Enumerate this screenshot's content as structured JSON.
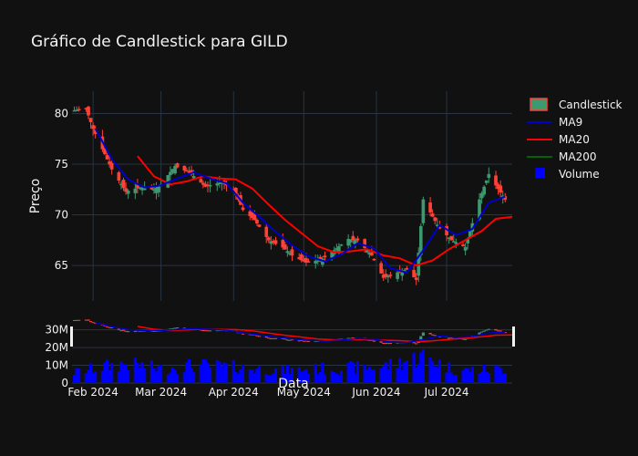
{
  "chart_data": {
    "type": "candlestick",
    "title": "Gráfico de Candlestick para GILD",
    "xlabel": "Data",
    "ylabel": "Preço",
    "colors": {
      "background": "#111111",
      "grid": "#283442",
      "increasing": "#3d9970",
      "decreasing": "#ff4136",
      "ma9": "#0000cd",
      "ma20": "#ff0000",
      "ma200": "#006400",
      "volume": "#0000ff"
    },
    "price_yticks": [
      "65",
      "70",
      "75",
      "80"
    ],
    "volume_yticks": [
      "0",
      "10M",
      "20M",
      "30M"
    ],
    "price_ylim": [
      61.5,
      82.2
    ],
    "volume_ylim": [
      0,
      37
    ],
    "legend": {
      "position": "top-right",
      "entries": [
        "Candlestick",
        "MA9",
        "MA20",
        "MA200",
        "Volume"
      ]
    },
    "x_ticks": [
      {
        "label": "Feb 2024",
        "date": "2024-02-01"
      },
      {
        "label": "Mar 2024",
        "date": "2024-03-01"
      },
      {
        "label": "Apr 2024",
        "date": "2024-04-01"
      },
      {
        "label": "May 2024",
        "date": "2024-05-01"
      },
      {
        "label": "Jun 2024",
        "date": "2024-06-01"
      },
      {
        "label": "Jul 2024",
        "date": "2024-07-01"
      }
    ],
    "x_range": [
      "2024-01-23",
      "2024-07-29"
    ],
    "price_checkpoints": [
      {
        "date": "2024-01-24",
        "close": 80.3
      },
      {
        "date": "2024-01-29",
        "close": 80.5
      },
      {
        "date": "2024-02-01",
        "close": 78.5
      },
      {
        "date": "2024-02-05",
        "close": 76.5
      },
      {
        "date": "2024-02-09",
        "close": 74.5
      },
      {
        "date": "2024-02-15",
        "close": 72.3
      },
      {
        "date": "2024-02-21",
        "close": 72.7
      },
      {
        "date": "2024-02-27",
        "close": 72.5
      },
      {
        "date": "2024-03-01",
        "close": 73.0
      },
      {
        "date": "2024-03-07",
        "close": 74.8
      },
      {
        "date": "2024-03-13",
        "close": 74.2
      },
      {
        "date": "2024-03-20",
        "close": 72.8
      },
      {
        "date": "2024-03-27",
        "close": 73.2
      },
      {
        "date": "2024-04-01",
        "close": 72.5
      },
      {
        "date": "2024-04-05",
        "close": 70.5
      },
      {
        "date": "2024-04-10",
        "close": 69.5
      },
      {
        "date": "2024-04-16",
        "close": 67.5
      },
      {
        "date": "2024-04-22",
        "close": 66.8
      },
      {
        "date": "2024-04-26",
        "close": 66.0
      },
      {
        "date": "2024-05-02",
        "close": 65.3
      },
      {
        "date": "2024-05-08",
        "close": 65.5
      },
      {
        "date": "2024-05-14",
        "close": 66.5
      },
      {
        "date": "2024-05-20",
        "close": 67.6
      },
      {
        "date": "2024-05-24",
        "close": 67.5
      },
      {
        "date": "2024-05-30",
        "close": 66.0
      },
      {
        "date": "2024-06-04",
        "close": 63.8
      },
      {
        "date": "2024-06-10",
        "close": 64.3
      },
      {
        "date": "2024-06-14",
        "close": 64.6
      },
      {
        "date": "2024-06-18",
        "close": 63.6
      },
      {
        "date": "2024-06-21",
        "close": 71.5
      },
      {
        "date": "2024-06-27",
        "close": 69.0
      },
      {
        "date": "2024-07-03",
        "close": 67.5
      },
      {
        "date": "2024-07-09",
        "close": 66.8
      },
      {
        "date": "2024-07-15",
        "close": 71.5
      },
      {
        "date": "2024-07-19",
        "close": 74.0
      },
      {
        "date": "2024-07-26",
        "close": 71.5
      }
    ],
    "ma9_checkpoints": [
      {
        "date": "2024-02-02",
        "value": 78.5
      },
      {
        "date": "2024-02-09",
        "value": 75.5
      },
      {
        "date": "2024-02-16",
        "value": 73.5
      },
      {
        "date": "2024-02-23",
        "value": 72.7
      },
      {
        "date": "2024-03-01",
        "value": 72.9
      },
      {
        "date": "2024-03-08",
        "value": 73.6
      },
      {
        "date": "2024-03-15",
        "value": 74.2
      },
      {
        "date": "2024-03-22",
        "value": 73.6
      },
      {
        "date": "2024-03-29",
        "value": 73.1
      },
      {
        "date": "2024-04-05",
        "value": 71.2
      },
      {
        "date": "2024-04-12",
        "value": 69.8
      },
      {
        "date": "2024-04-19",
        "value": 68.3
      },
      {
        "date": "2024-04-26",
        "value": 67.0
      },
      {
        "date": "2024-05-03",
        "value": 65.9
      },
      {
        "date": "2024-05-10",
        "value": 65.4
      },
      {
        "date": "2024-05-17",
        "value": 66.1
      },
      {
        "date": "2024-05-24",
        "value": 67.2
      },
      {
        "date": "2024-05-31",
        "value": 66.7
      },
      {
        "date": "2024-06-07",
        "value": 64.7
      },
      {
        "date": "2024-06-14",
        "value": 64.3
      },
      {
        "date": "2024-06-21",
        "value": 66.5
      },
      {
        "date": "2024-06-28",
        "value": 69.0
      },
      {
        "date": "2024-07-05",
        "value": 68.0
      },
      {
        "date": "2024-07-12",
        "value": 68.6
      },
      {
        "date": "2024-07-19",
        "value": 71.2
      },
      {
        "date": "2024-07-26",
        "value": 71.8
      }
    ],
    "ma20_checkpoints": [
      {
        "date": "2024-02-20",
        "value": 75.8
      },
      {
        "date": "2024-02-27",
        "value": 73.8
      },
      {
        "date": "2024-03-05",
        "value": 73.0
      },
      {
        "date": "2024-03-12",
        "value": 73.3
      },
      {
        "date": "2024-03-19",
        "value": 73.8
      },
      {
        "date": "2024-03-26",
        "value": 73.6
      },
      {
        "date": "2024-04-02",
        "value": 73.5
      },
      {
        "date": "2024-04-09",
        "value": 72.6
      },
      {
        "date": "2024-04-16",
        "value": 71.0
      },
      {
        "date": "2024-04-23",
        "value": 69.5
      },
      {
        "date": "2024-04-30",
        "value": 68.2
      },
      {
        "date": "2024-05-07",
        "value": 66.9
      },
      {
        "date": "2024-05-14",
        "value": 66.3
      },
      {
        "date": "2024-05-21",
        "value": 66.4
      },
      {
        "date": "2024-05-28",
        "value": 66.6
      },
      {
        "date": "2024-06-04",
        "value": 66.0
      },
      {
        "date": "2024-06-11",
        "value": 65.7
      },
      {
        "date": "2024-06-18",
        "value": 65.0
      },
      {
        "date": "2024-06-25",
        "value": 65.5
      },
      {
        "date": "2024-07-02",
        "value": 66.6
      },
      {
        "date": "2024-07-09",
        "value": 67.5
      },
      {
        "date": "2024-07-16",
        "value": 68.4
      },
      {
        "date": "2024-07-22",
        "value": 69.6
      },
      {
        "date": "2024-07-29",
        "value": 69.8
      }
    ],
    "ma200_checkpoints": [],
    "volume_checkpoints": [
      {
        "date": "2024-01-24",
        "value": 6
      },
      {
        "date": "2024-02-05",
        "value": 9
      },
      {
        "date": "2024-02-15",
        "value": 11
      },
      {
        "date": "2024-03-01",
        "value": 8
      },
      {
        "date": "2024-03-15",
        "value": 10
      },
      {
        "date": "2024-04-01",
        "value": 9
      },
      {
        "date": "2024-04-22",
        "value": 7
      },
      {
        "date": "2024-05-08",
        "value": 8
      },
      {
        "date": "2024-06-03",
        "value": 9
      },
      {
        "date": "2024-06-21",
        "value": 15
      },
      {
        "date": "2024-07-05",
        "value": 7
      },
      {
        "date": "2024-07-26",
        "value": 8
      }
    ]
  }
}
